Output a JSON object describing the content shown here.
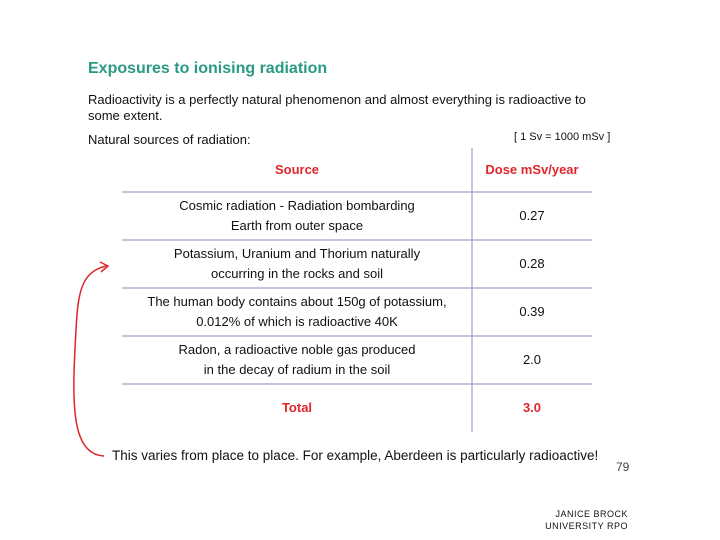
{
  "slide": {
    "title": "Exposures to ionising radiation",
    "intro": [
      "Radioactivity is a perfectly natural phenomenon and almost everything is radioactive to",
      "some extent."
    ],
    "subheading": "Natural sources of radiation:",
    "unit_note": "[ 1 Sv = 1000 mSv ]",
    "table": {
      "header": [
        "Source",
        "Dose mSv/year"
      ],
      "rows": [
        {
          "source": [
            "Cosmic radiation - Radiation bombarding",
            "Earth from outer space"
          ],
          "dose": "0.27"
        },
        {
          "source": [
            "Potassium, Uranium and Thorium naturally",
            "occurring in the rocks and soil"
          ],
          "dose": "0.28"
        },
        {
          "source": [
            "The human body contains about 150g of potassium,",
            "0.012% of which is radioactive 40K"
          ],
          "dose": "0.39"
        },
        {
          "source": [
            "Radon, a radioactive noble gas produced",
            "in the decay of radium in the soil"
          ],
          "dose": "2.0"
        }
      ],
      "total": {
        "label": "Total",
        "dose": "3.0"
      }
    },
    "note": "This varies from place to place. For example, Aberdeen is particularly radioactive!",
    "page_number": "79",
    "footer": [
      "JANICE BROCK",
      "UNIVERSITY RPO"
    ]
  }
}
